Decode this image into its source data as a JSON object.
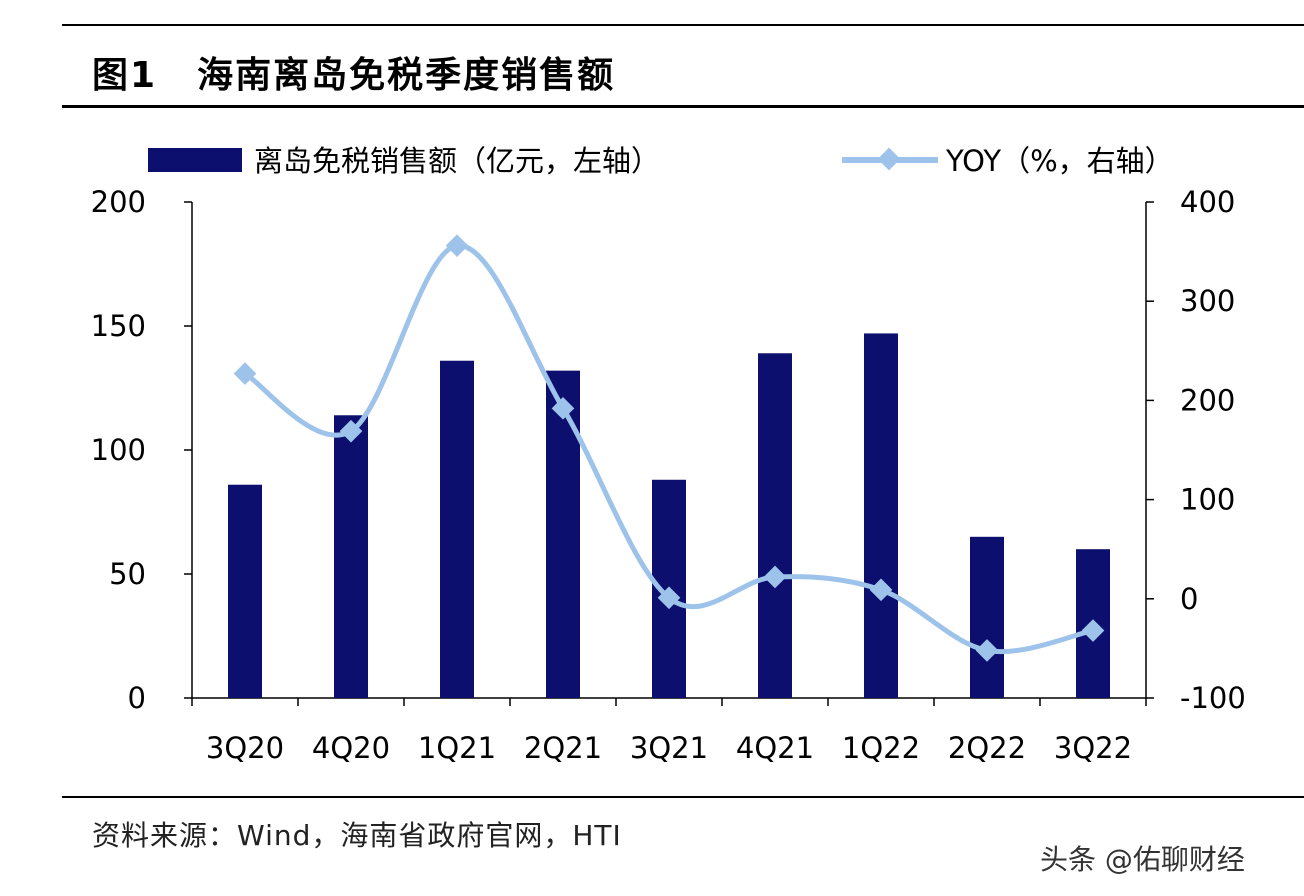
{
  "title": {
    "figure_no": "图1",
    "text": "海南离岛免税季度销售额"
  },
  "source": "资料来源：Wind，海南省政府官网，HTI",
  "watermark": "头条 @佑聊财经",
  "chart_data": {
    "type": "bar+line",
    "categories": [
      "3Q20",
      "4Q20",
      "1Q21",
      "2Q21",
      "3Q21",
      "4Q21",
      "1Q22",
      "2Q22",
      "3Q22"
    ],
    "series": [
      {
        "name": "离岛免税销售额（亿元，左轴）",
        "type": "bar",
        "axis": "left",
        "color": "#0d0f6e",
        "values": [
          86,
          114,
          136,
          132,
          88,
          139,
          147,
          65,
          60
        ]
      },
      {
        "name": "YOY（%，右轴）",
        "type": "line",
        "axis": "right",
        "color": "#9ec3ea",
        "marker": "diamond",
        "values": [
          227,
          169,
          356,
          192,
          1,
          22,
          9,
          -52,
          -32
        ]
      }
    ],
    "left_axis": {
      "range": [
        0,
        200
      ],
      "ticks": [
        0,
        50,
        100,
        150,
        200
      ]
    },
    "right_axis": {
      "range": [
        -100,
        400
      ],
      "ticks": [
        -100,
        0,
        100,
        200,
        300,
        400
      ]
    },
    "grid": false,
    "legend": "top"
  }
}
